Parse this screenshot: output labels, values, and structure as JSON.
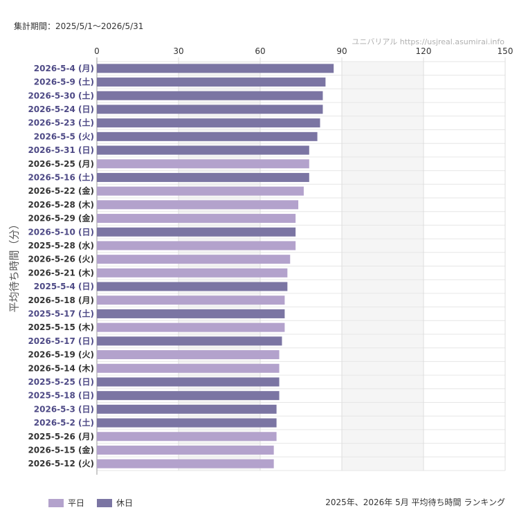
{
  "header": {
    "period": "集計期間：2025/5/1〜2026/5/31",
    "credit": "ユニバリアル  https://usjreal.asumirai.info"
  },
  "footer": {
    "caption": "2025年、2026年 5月 平均待ち時間 ランキング"
  },
  "legend": {
    "weekday": "平日",
    "holiday": "休日"
  },
  "colors": {
    "weekday": "#b3a2cc",
    "holiday": "#7b75a3",
    "holiday_label": "#4e4a86",
    "weekday_label": "#333333",
    "band": "#f5f5f5",
    "grid": "#dddddd"
  },
  "chart_data": {
    "type": "bar",
    "orientation": "horizontal",
    "ylabel": "平均待ち時間（分）",
    "xlim": [
      0,
      150
    ],
    "xticks": [
      0,
      30,
      60,
      90,
      120,
      150
    ],
    "bands": [
      [
        30,
        60
      ],
      [
        90,
        120
      ]
    ],
    "grid": true,
    "legend_position": "bottom-left",
    "categories": [
      "2026-5-4 (月)",
      "2026-5-9 (土)",
      "2026-5-30 (土)",
      "2026-5-24 (日)",
      "2026-5-23 (土)",
      "2026-5-5 (火)",
      "2026-5-31 (日)",
      "2026-5-25 (月)",
      "2026-5-16 (土)",
      "2026-5-22 (金)",
      "2026-5-28 (木)",
      "2026-5-29 (金)",
      "2026-5-10 (日)",
      "2025-5-28 (水)",
      "2026-5-26 (火)",
      "2026-5-21 (木)",
      "2025-5-4 (日)",
      "2026-5-18 (月)",
      "2025-5-17 (土)",
      "2025-5-15 (木)",
      "2026-5-17 (日)",
      "2026-5-19 (火)",
      "2026-5-14 (木)",
      "2025-5-25 (日)",
      "2025-5-18 (日)",
      "2026-5-3 (日)",
      "2026-5-2 (土)",
      "2025-5-26 (月)",
      "2026-5-15 (金)",
      "2026-5-12 (火)"
    ],
    "values": [
      87,
      84,
      83,
      83,
      82,
      81,
      78,
      78,
      78,
      76,
      74,
      73,
      73,
      73,
      71,
      70,
      70,
      69,
      69,
      69,
      68,
      67,
      67,
      67,
      67,
      66,
      66,
      66,
      65,
      65
    ],
    "day_type": [
      "holiday",
      "holiday",
      "holiday",
      "holiday",
      "holiday",
      "holiday",
      "holiday",
      "weekday",
      "holiday",
      "weekday",
      "weekday",
      "weekday",
      "holiday",
      "weekday",
      "weekday",
      "weekday",
      "holiday",
      "weekday",
      "holiday",
      "weekday",
      "holiday",
      "weekday",
      "weekday",
      "holiday",
      "holiday",
      "holiday",
      "holiday",
      "weekday",
      "weekday",
      "weekday"
    ]
  }
}
